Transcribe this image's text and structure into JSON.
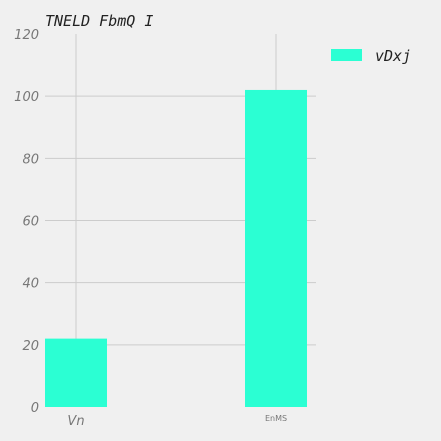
{
  "chart_data": {
    "type": "bar",
    "title": "TNELD FbmQ I",
    "categories": [
      "Vn",
      "EnMS"
    ],
    "series": [
      {
        "name": "vDxj",
        "values": [
          22,
          102
        ],
        "color": "#2bffd3"
      }
    ],
    "ylim": [
      0,
      120
    ],
    "yticks": [
      "0",
      "20",
      "40",
      "60",
      "80",
      "100",
      "120"
    ],
    "grid": true,
    "legend": "top-right"
  }
}
